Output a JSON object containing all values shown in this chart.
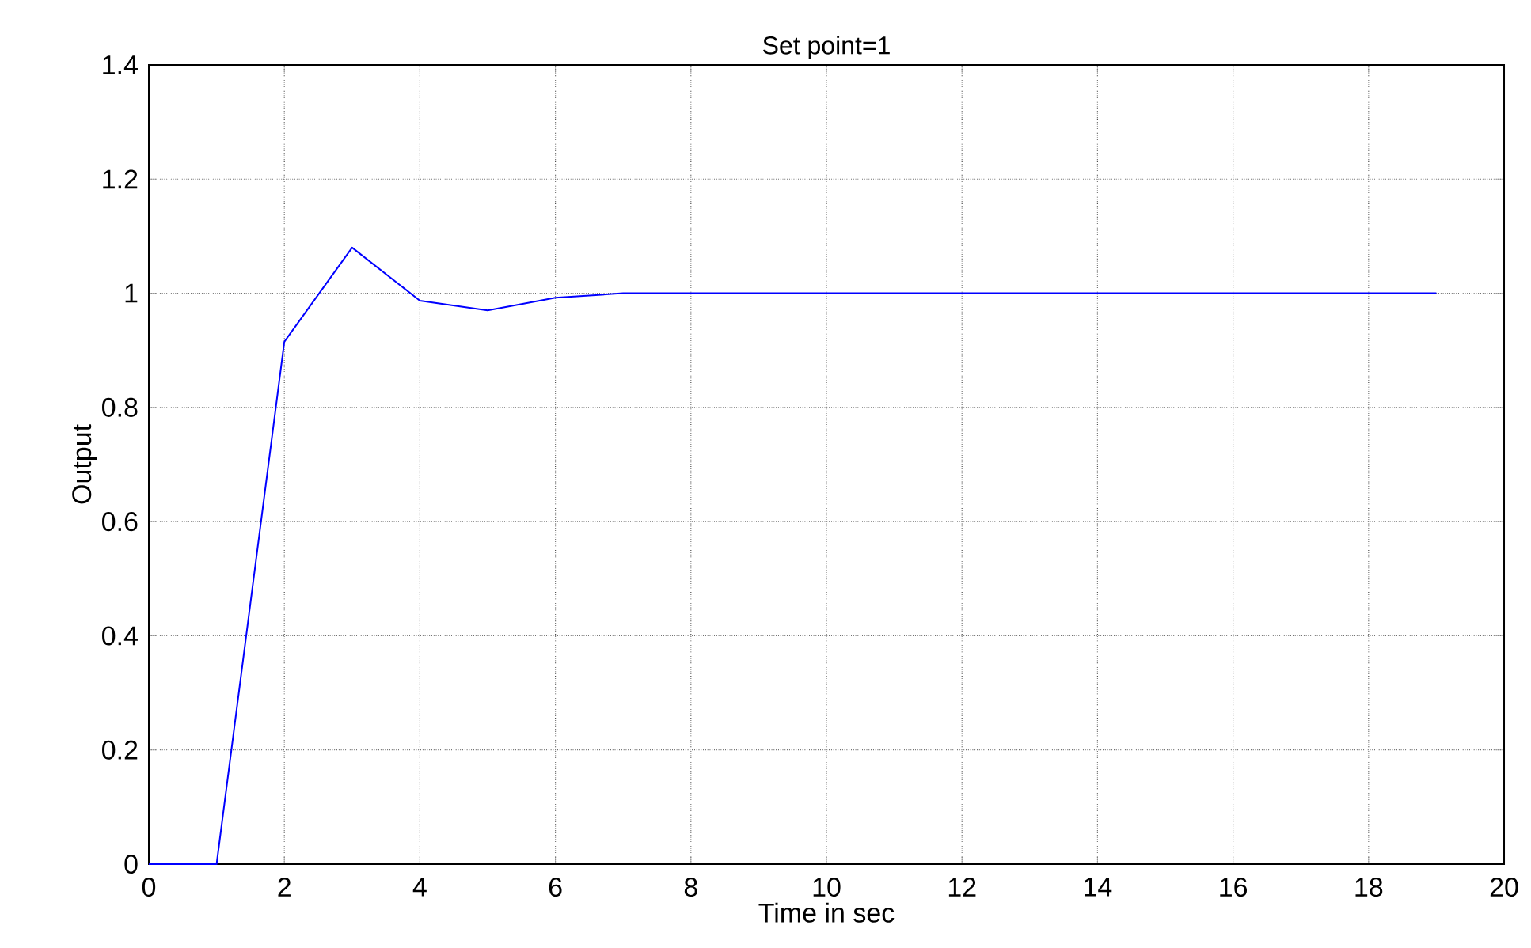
{
  "chart_data": {
    "type": "line",
    "title": "Set point=1",
    "xlabel": "Time in sec",
    "ylabel": "Output",
    "x": [
      0,
      1,
      2,
      3,
      4,
      5,
      6,
      7,
      8,
      9,
      10,
      11,
      12,
      13,
      14,
      15,
      16,
      17,
      18,
      19
    ],
    "series": [
      {
        "color": "#0000ff",
        "values": [
          0,
          0,
          0.915,
          1.08,
          0.987,
          0.97,
          0.992,
          1.0,
          1.0,
          1.0,
          1.0,
          1.0,
          1.0,
          1.0,
          1.0,
          1.0,
          1.0,
          1.0,
          1.0,
          1.0
        ]
      }
    ],
    "xlim": [
      0,
      20
    ],
    "ylim": [
      0,
      1.4
    ],
    "xticks": [
      0,
      2,
      4,
      6,
      8,
      10,
      12,
      14,
      16,
      18,
      20
    ],
    "yticks": [
      0,
      0.2,
      0.4,
      0.6,
      0.8,
      1,
      1.2,
      1.4
    ],
    "grid": true,
    "marker": "none",
    "line_style": "solid"
  }
}
